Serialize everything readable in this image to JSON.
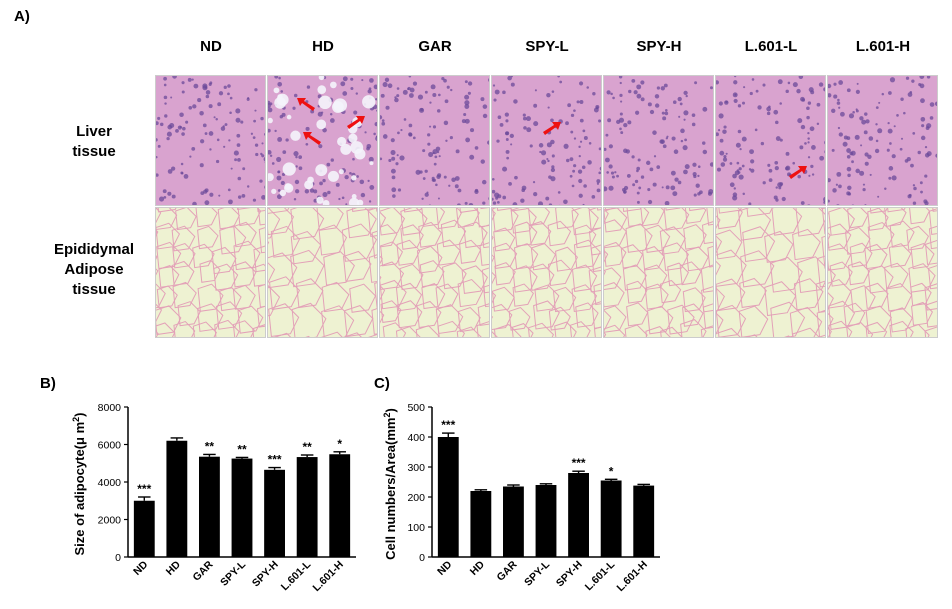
{
  "panel_a": {
    "letter": "A)",
    "columns": [
      "ND",
      "HD",
      "GAR",
      "SPY-L",
      "SPY-H",
      "L.601-L",
      "L.601-H"
    ],
    "rows": [
      {
        "label_lines": [
          "Liver",
          "tissue"
        ]
      },
      {
        "label_lines": [
          "Epididymal",
          "Adipose",
          "tissue"
        ]
      }
    ],
    "colors": {
      "liver_bg": "#d9a3cf",
      "liver_nuclei": "#6b4a9a",
      "adipose_bg": "#eef2d2",
      "adipose_line": "#e3a1b8",
      "arrow": "#ee1111"
    }
  },
  "chart_data": [
    {
      "type": "bar",
      "panel_letter": "B)",
      "categories": [
        "ND",
        "HD",
        "GAR",
        "SPY-L",
        "SPY-H",
        "L.601-L",
        "L.601-H"
      ],
      "values": [
        3000,
        6200,
        5350,
        5250,
        4650,
        5330,
        5480
      ],
      "errors": [
        200,
        150,
        120,
        60,
        120,
        110,
        130
      ],
      "significance": [
        "***",
        "",
        "**",
        "**",
        "***",
        "**",
        "*"
      ],
      "ylabel_text": "Size of adipocyte(μ m",
      "ylabel_sup": "2",
      "ylabel_tail": ")",
      "ylim": [
        0,
        8000
      ],
      "yticks": [
        "0",
        "2000",
        "4000",
        "6000",
        "8000"
      ],
      "bar_color": "#000000"
    },
    {
      "type": "bar",
      "panel_letter": "C)",
      "categories": [
        "ND",
        "HD",
        "GAR",
        "SPY-L",
        "SPY-H",
        "L.601-L",
        "L.601-H"
      ],
      "values": [
        400,
        220,
        235,
        240,
        280,
        255,
        238
      ],
      "errors": [
        13,
        4,
        5,
        4,
        6,
        4,
        4
      ],
      "significance": [
        "***",
        "",
        "",
        "",
        "***",
        "*",
        ""
      ],
      "ylabel_text": "Cell numbers/Area(mm",
      "ylabel_sup": "2",
      "ylabel_tail": ")",
      "ylim": [
        0,
        500
      ],
      "yticks": [
        "0",
        "100",
        "200",
        "300",
        "400",
        "500"
      ],
      "bar_color": "#000000"
    }
  ]
}
